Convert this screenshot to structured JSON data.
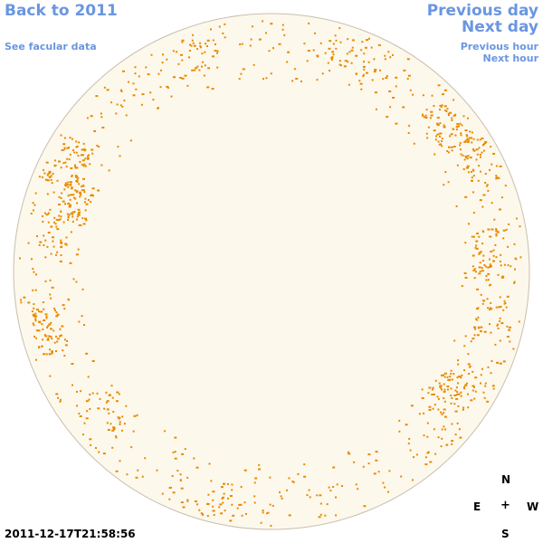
{
  "nav": {
    "back": "Back to 2011",
    "facular": "See facular data",
    "previous_day": "Previous day",
    "next_day": "Next day",
    "previous_hour": "Previous hour",
    "next_hour": "Next hour"
  },
  "compass": {
    "north": "N",
    "south": "S",
    "east": "E",
    "west": "W",
    "center": "+"
  },
  "timestamp": "2011-12-17T21:58:56",
  "colors": {
    "link": "#6a96e0",
    "disk_fill": "#fdf8ec",
    "disk_edge": "#c8bfae",
    "facula": "#e88a00"
  }
}
